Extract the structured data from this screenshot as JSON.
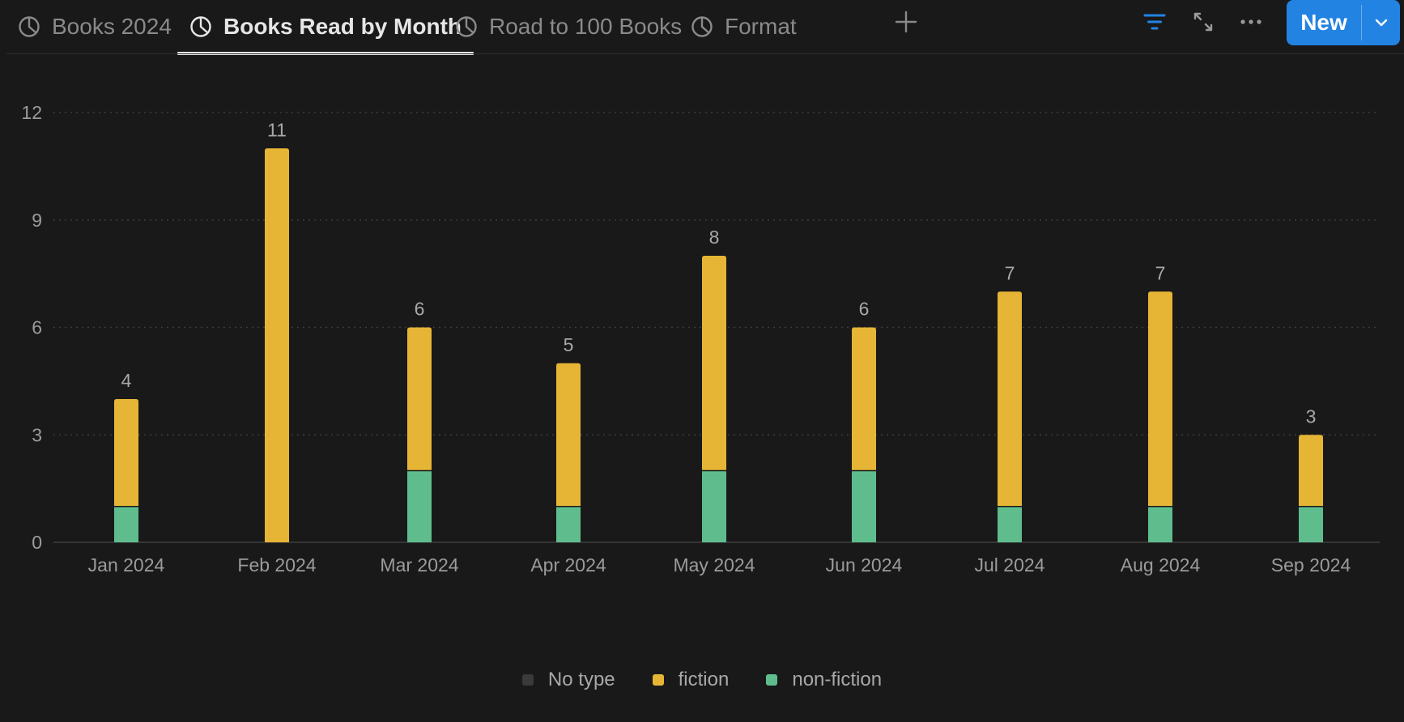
{
  "tabs": [
    {
      "label": "Books 2024",
      "icon": "pie-chart-icon",
      "active": false
    },
    {
      "label": "Books Read by Month",
      "icon": "pie-chart-icon",
      "active": true
    },
    {
      "label": "Road to 100 Books",
      "icon": "pie-chart-icon",
      "active": false
    },
    {
      "label": "Format",
      "icon": "pie-chart-icon",
      "active": false
    }
  ],
  "toolbar": {
    "add_tab_icon": "plus-icon",
    "filter_icon": "filter-icon",
    "expand_icon": "expand-icon",
    "more_icon": "more-icon",
    "new_label": "New",
    "new_caret_icon": "chevron-down-icon"
  },
  "colors": {
    "background": "#191919",
    "accent": "#2383e2",
    "fiction": "#e6b535",
    "non_fiction": "#5fbd8d",
    "no_type": "#3a3a3a"
  },
  "chart_data": {
    "type": "bar",
    "stacked": true,
    "categories": [
      "Jan 2024",
      "Feb 2024",
      "Mar 2024",
      "Apr 2024",
      "May 2024",
      "Jun 2024",
      "Jul 2024",
      "Aug 2024",
      "Sep 2024"
    ],
    "series": [
      {
        "name": "No type",
        "values": [
          0,
          0,
          0,
          0,
          0,
          0,
          0,
          0,
          0
        ],
        "color": "#3a3a3a"
      },
      {
        "name": "fiction",
        "values": [
          3,
          11,
          4,
          4,
          6,
          4,
          6,
          6,
          2
        ],
        "color": "#e6b535"
      },
      {
        "name": "non-fiction",
        "values": [
          1,
          0,
          2,
          1,
          2,
          2,
          1,
          1,
          1
        ],
        "color": "#5fbd8d"
      }
    ],
    "totals": [
      4,
      11,
      6,
      5,
      8,
      6,
      7,
      7,
      3
    ],
    "ylim": [
      0,
      12
    ],
    "yticks": [
      0,
      3,
      6,
      9,
      12
    ],
    "grid": true,
    "legend": "bottom"
  }
}
